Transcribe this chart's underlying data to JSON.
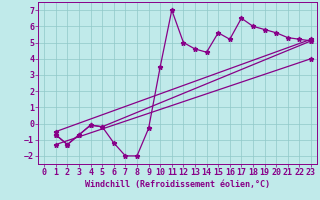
{
  "xlabel": "Windchill (Refroidissement éolien,°C)",
  "xlim": [
    -0.5,
    23.5
  ],
  "ylim": [
    -2.5,
    7.5
  ],
  "xticks": [
    0,
    1,
    2,
    3,
    4,
    5,
    6,
    7,
    8,
    9,
    10,
    11,
    12,
    13,
    14,
    15,
    16,
    17,
    18,
    19,
    20,
    21,
    22,
    23
  ],
  "yticks": [
    -2,
    -1,
    0,
    1,
    2,
    3,
    4,
    5,
    6,
    7
  ],
  "background_color": "#c0eaea",
  "grid_color": "#90c8c8",
  "line_color": "#880088",
  "line1_x": [
    1,
    2,
    3,
    4,
    5,
    6,
    7,
    8,
    9,
    10,
    11,
    12,
    13,
    14,
    15,
    16,
    17,
    18,
    19,
    20,
    21,
    22,
    23
  ],
  "line1_y": [
    -0.7,
    -1.3,
    -0.7,
    -0.1,
    -0.2,
    -1.2,
    -2.0,
    -2.0,
    -0.3,
    3.5,
    7.0,
    5.0,
    4.6,
    4.4,
    5.6,
    5.2,
    6.5,
    6.0,
    5.8,
    5.6,
    5.3,
    5.2,
    5.1
  ],
  "line2_x": [
    1,
    2,
    3,
    4,
    5,
    23
  ],
  "line2_y": [
    -0.7,
    -1.3,
    -0.7,
    -0.1,
    -0.2,
    5.1
  ],
  "line3_x": [
    1,
    23
  ],
  "line3_y": [
    -0.5,
    5.2
  ],
  "line4_x": [
    1,
    23
  ],
  "line4_y": [
    -1.3,
    4.0
  ],
  "fontsize_xlabel": 6,
  "fontsize_ticks": 6
}
